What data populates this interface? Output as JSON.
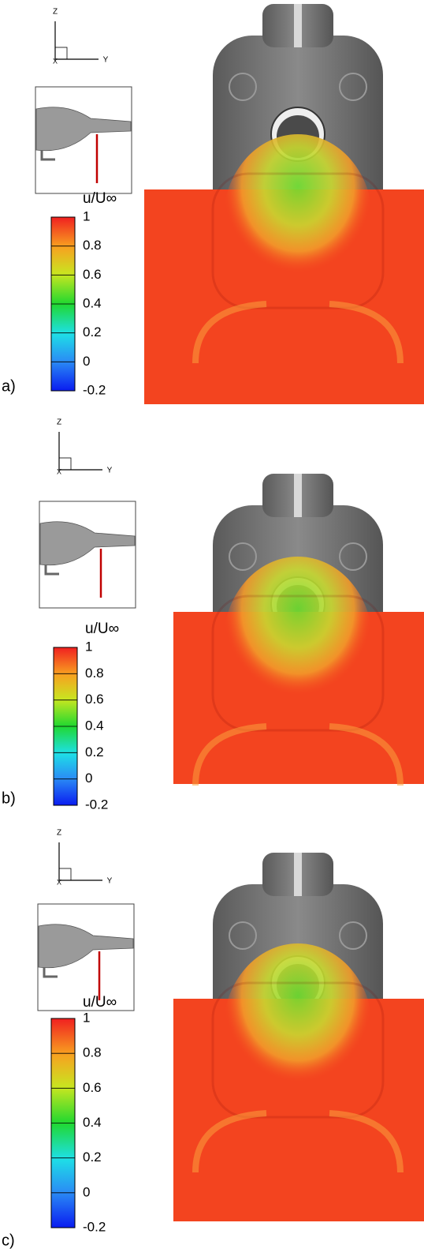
{
  "panels": [
    {
      "label": "a)",
      "axes": {
        "z": "Z",
        "y": "Y",
        "x": "X"
      },
      "colorbar": {
        "title": "u/U∞",
        "lim": [
          -0.2,
          1
        ],
        "ticks": [
          1,
          0.8,
          0.6,
          0.4,
          0.2,
          0,
          -0.2
        ]
      }
    },
    {
      "label": "b)",
      "axes": {
        "z": "Z",
        "y": "Y",
        "x": "X"
      },
      "colorbar": {
        "title": "u/U∞",
        "lim": [
          -0.2,
          1
        ],
        "ticks": [
          1,
          0.8,
          0.6,
          0.4,
          0.2,
          0,
          -0.2
        ]
      }
    },
    {
      "label": "c)",
      "axes": {
        "z": "Z",
        "y": "Y",
        "x": "X"
      },
      "colorbar": {
        "title": "u/U∞",
        "lim": [
          -0.2,
          1
        ],
        "ticks": [
          1,
          0.8,
          0.6,
          0.4,
          0.2,
          0,
          -0.2
        ]
      }
    }
  ]
}
